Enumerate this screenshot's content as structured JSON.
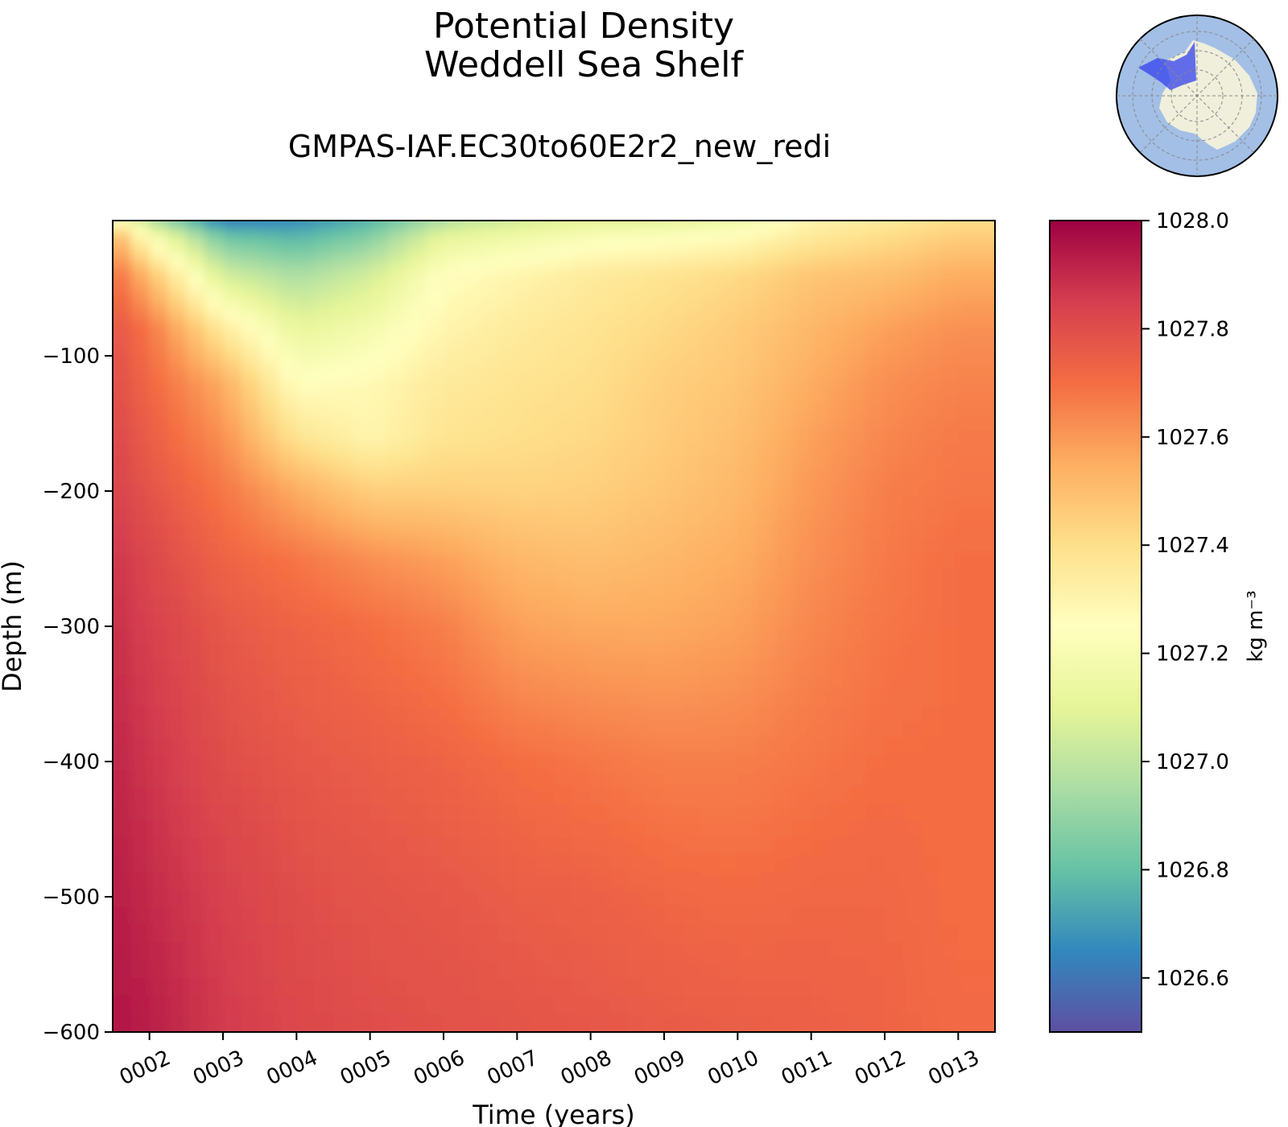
{
  "chart_data": {
    "type": "heatmap",
    "title": "Potential Density",
    "title_line2": "Weddell Sea Shelf",
    "subtitle": "GMPAS-IAF.EC30to60E2r2_new_redi",
    "xlabel": "Time (years)",
    "ylabel": "Depth (m)",
    "x_ticks": [
      "0002",
      "0003",
      "0004",
      "0005",
      "0006",
      "0007",
      "0008",
      "0009",
      "0010",
      "0011",
      "0012",
      "0013"
    ],
    "x_range": [
      1.5,
      13.5
    ],
    "y_ticks": [
      -100,
      -200,
      -300,
      -400,
      -500,
      -600
    ],
    "y_tick_labels": [
      "−100",
      "−200",
      "−300",
      "−400",
      "−500",
      "−600"
    ],
    "ylim": [
      -600,
      0
    ],
    "colorbar": {
      "label": "kg m⁻³",
      "ticks": [
        1028.0,
        1027.8,
        1027.6,
        1027.4,
        1027.2,
        1027.0,
        1026.8,
        1026.6
      ],
      "tick_labels": [
        "1028.0",
        "1027.8",
        "1027.6",
        "1027.4",
        "1027.2",
        "1027.0",
        "1026.8",
        "1026.6"
      ],
      "vmin": 1026.5,
      "vmax": 1028.0,
      "colormap": "Spectral_r"
    },
    "grid": false,
    "depths": [
      0,
      -10,
      -40,
      -80,
      -120,
      -160,
      -200,
      -250,
      -300,
      -400,
      -500,
      -600
    ],
    "times": [
      1.5,
      2.0,
      3.0,
      4.0,
      5.0,
      6.0,
      7.0,
      8.0,
      9.0,
      10.0,
      11.0,
      12.0,
      13.0,
      13.5
    ],
    "values": [
      [
        1027.25,
        1026.95,
        1026.6,
        1026.65,
        1026.75,
        1026.95,
        1027.05,
        1027.1,
        1027.1,
        1027.15,
        1027.3,
        1027.35,
        1027.4,
        1027.4
      ],
      [
        1027.55,
        1027.2,
        1026.8,
        1026.75,
        1026.85,
        1027.1,
        1027.15,
        1027.2,
        1027.22,
        1027.25,
        1027.35,
        1027.4,
        1027.45,
        1027.45
      ],
      [
        1027.72,
        1027.5,
        1027.05,
        1026.95,
        1027.05,
        1027.25,
        1027.3,
        1027.35,
        1027.38,
        1027.42,
        1027.48,
        1027.5,
        1027.55,
        1027.55
      ],
      [
        1027.78,
        1027.68,
        1027.35,
        1027.12,
        1027.18,
        1027.3,
        1027.35,
        1027.38,
        1027.42,
        1027.46,
        1027.52,
        1027.58,
        1027.62,
        1027.62
      ],
      [
        1027.8,
        1027.72,
        1027.55,
        1027.25,
        1027.28,
        1027.35,
        1027.38,
        1027.4,
        1027.45,
        1027.48,
        1027.55,
        1027.62,
        1027.65,
        1027.65
      ],
      [
        1027.82,
        1027.75,
        1027.62,
        1027.38,
        1027.3,
        1027.38,
        1027.4,
        1027.42,
        1027.46,
        1027.5,
        1027.58,
        1027.64,
        1027.67,
        1027.67
      ],
      [
        1027.84,
        1027.78,
        1027.68,
        1027.55,
        1027.45,
        1027.45,
        1027.44,
        1027.45,
        1027.48,
        1027.52,
        1027.6,
        1027.66,
        1027.68,
        1027.68
      ],
      [
        1027.87,
        1027.82,
        1027.73,
        1027.68,
        1027.62,
        1027.58,
        1027.52,
        1027.5,
        1027.52,
        1027.55,
        1027.62,
        1027.67,
        1027.7,
        1027.7
      ],
      [
        1027.89,
        1027.84,
        1027.77,
        1027.73,
        1027.7,
        1027.66,
        1027.58,
        1027.56,
        1027.56,
        1027.58,
        1027.64,
        1027.68,
        1027.7,
        1027.7
      ],
      [
        1027.91,
        1027.87,
        1027.8,
        1027.77,
        1027.75,
        1027.73,
        1027.7,
        1027.68,
        1027.66,
        1027.66,
        1027.68,
        1027.7,
        1027.7,
        1027.7
      ],
      [
        1027.93,
        1027.9,
        1027.84,
        1027.8,
        1027.78,
        1027.77,
        1027.75,
        1027.74,
        1027.72,
        1027.71,
        1027.72,
        1027.72,
        1027.7,
        1027.7
      ],
      [
        1027.95,
        1027.93,
        1027.86,
        1027.82,
        1027.8,
        1027.79,
        1027.78,
        1027.77,
        1027.76,
        1027.75,
        1027.74,
        1027.73,
        1027.71,
        1027.71
      ]
    ]
  }
}
